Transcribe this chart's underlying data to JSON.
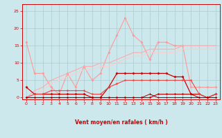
{
  "xlabel": "Vent moyen/en rafales ( km/h )",
  "bg_color": "#cce8ec",
  "grid_color": "#aaccd0",
  "ylim": [
    -1,
    27
  ],
  "yticks": [
    0,
    5,
    10,
    15,
    20,
    25
  ],
  "series": [
    {
      "x": [
        0,
        1,
        2,
        3,
        4,
        5,
        6,
        7,
        8,
        9,
        10,
        11,
        12,
        13,
        14,
        15,
        16,
        17,
        18,
        19,
        20,
        21,
        22,
        23
      ],
      "y": [
        16,
        7,
        7,
        3,
        1,
        7,
        3,
        9,
        5,
        7,
        13,
        18,
        23,
        18,
        16,
        11,
        16,
        16,
        15,
        15,
        3,
        3,
        3,
        3
      ],
      "color": "#ff9999",
      "lw": 0.8,
      "marker": "D",
      "ms": 1.8
    },
    {
      "x": [
        0,
        1,
        2,
        3,
        4,
        5,
        6,
        7,
        8,
        9,
        10,
        11,
        12,
        13,
        14,
        15,
        16,
        17,
        18,
        19,
        20,
        21,
        22,
        23
      ],
      "y": [
        0,
        2,
        3,
        5,
        6,
        7,
        8,
        9,
        9,
        10,
        10,
        11,
        12,
        13,
        13,
        14,
        14,
        14,
        14,
        15,
        15,
        15,
        15,
        15
      ],
      "color": "#ffaaaa",
      "lw": 0.8,
      "marker": null,
      "ms": 0
    },
    {
      "x": [
        0,
        1,
        2,
        3,
        4,
        5,
        6,
        7,
        8,
        9,
        10,
        11,
        12,
        13,
        14,
        15,
        16,
        17,
        18,
        19,
        20,
        21,
        22,
        23
      ],
      "y": [
        0,
        1,
        2,
        4,
        5,
        6,
        7,
        8,
        8,
        9,
        9,
        10,
        11,
        12,
        12,
        13,
        13,
        13,
        13,
        14,
        14,
        14,
        14,
        14
      ],
      "color": "#ffcccc",
      "lw": 0.8,
      "marker": null,
      "ms": 0
    },
    {
      "x": [
        0,
        1,
        2,
        3,
        4,
        5,
        6,
        7,
        8,
        9,
        10,
        11,
        12,
        13,
        14,
        15,
        16,
        17,
        18,
        19,
        20,
        21,
        22,
        23
      ],
      "y": [
        3,
        1,
        1,
        1,
        1,
        1,
        1,
        1,
        0,
        0,
        3,
        7,
        7,
        7,
        7,
        7,
        7,
        7,
        6,
        6,
        1,
        1,
        0,
        1
      ],
      "color": "#cc0000",
      "lw": 0.9,
      "marker": "D",
      "ms": 1.8
    },
    {
      "x": [
        0,
        1,
        2,
        3,
        4,
        5,
        6,
        7,
        8,
        9,
        10,
        11,
        12,
        13,
        14,
        15,
        16,
        17,
        18,
        19,
        20,
        21,
        22,
        23
      ],
      "y": [
        0,
        1,
        1,
        2,
        2,
        2,
        2,
        2,
        1,
        1,
        3,
        4,
        5,
        5,
        5,
        5,
        5,
        5,
        5,
        5,
        5,
        1,
        0,
        1
      ],
      "color": "#ee4444",
      "lw": 0.8,
      "marker": "D",
      "ms": 1.5
    },
    {
      "x": [
        0,
        1,
        2,
        3,
        4,
        5,
        6,
        7,
        8,
        9,
        10,
        11,
        12,
        13,
        14,
        15,
        16,
        17,
        18,
        19,
        20,
        21,
        22,
        23
      ],
      "y": [
        0,
        0,
        0,
        0,
        0,
        0,
        0,
        0,
        0,
        0,
        0,
        0,
        0,
        0,
        0,
        0,
        1,
        1,
        1,
        1,
        1,
        0,
        0,
        0
      ],
      "color": "#bb0000",
      "lw": 0.8,
      "marker": "D",
      "ms": 1.5
    },
    {
      "x": [
        0,
        1,
        2,
        3,
        4,
        5,
        6,
        7,
        8,
        9,
        10,
        11,
        12,
        13,
        14,
        15,
        16,
        17,
        18,
        19,
        20,
        21,
        22,
        23
      ],
      "y": [
        0,
        0,
        0,
        0,
        0,
        0,
        0,
        0,
        0,
        0,
        0,
        0,
        0,
        0,
        0,
        1,
        0,
        0,
        0,
        0,
        0,
        0,
        0,
        0
      ],
      "color": "#990000",
      "lw": 0.7,
      "marker": "D",
      "ms": 1.2
    }
  ],
  "arrows": {
    "angles_deg": [
      0,
      10,
      30,
      45,
      60,
      120,
      150,
      180,
      210,
      240,
      270,
      260,
      270,
      280,
      290,
      150,
      140,
      140,
      180,
      180,
      180,
      180,
      180,
      180
    ]
  }
}
